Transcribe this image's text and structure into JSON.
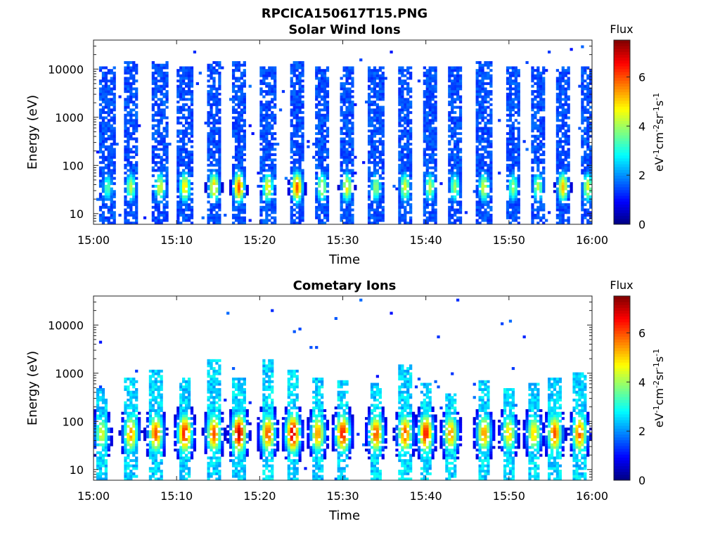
{
  "figure": {
    "title": "RPCICA150617T15.PNG"
  },
  "chart_data": [
    {
      "type": "heatmap",
      "title": "Solar Wind Ions",
      "xlabel": "Time",
      "ylabel": "Energy (eV)",
      "x_ticks": [
        "15:00",
        "15:10",
        "15:20",
        "15:30",
        "15:40",
        "15:50",
        "16:00"
      ],
      "x_range": [
        "15:00",
        "16:00"
      ],
      "y_scale": "log",
      "y_ticks": [
        "10",
        "100",
        "1000",
        "10000"
      ],
      "y_range": [
        6,
        40000
      ],
      "colorbar": {
        "label": "Flux",
        "unit": "eV-1cm-2sr-1s-1",
        "ticks": [
          "0",
          "2",
          "4",
          "6"
        ],
        "range": [
          0,
          7.5
        ],
        "colormap": "jet"
      },
      "bursts": [
        {
          "t": 1.7,
          "peak": 3.5,
          "hi": 12000
        },
        {
          "t": 4.5,
          "peak": 4.2,
          "hi": 14000
        },
        {
          "t": 8.0,
          "peak": 4.5,
          "hi": 15000
        },
        {
          "t": 11.0,
          "peak": 5.0,
          "hi": 12000
        },
        {
          "t": 14.5,
          "peak": 5.2,
          "hi": 15000
        },
        {
          "t": 17.5,
          "peak": 6.0,
          "hi": 15000
        },
        {
          "t": 21.0,
          "peak": 4.8,
          "hi": 12000
        },
        {
          "t": 24.5,
          "peak": 6.0,
          "hi": 15000
        },
        {
          "t": 27.5,
          "peak": 4.5,
          "hi": 12000
        },
        {
          "t": 30.5,
          "peak": 4.8,
          "hi": 12000
        },
        {
          "t": 34.0,
          "peak": 4.0,
          "hi": 12000
        },
        {
          "t": 37.5,
          "peak": 4.5,
          "hi": 12000
        },
        {
          "t": 40.5,
          "peak": 4.2,
          "hi": 12000
        },
        {
          "t": 43.5,
          "peak": 4.0,
          "hi": 12000
        },
        {
          "t": 47.0,
          "peak": 4.5,
          "hi": 14000
        },
        {
          "t": 50.5,
          "peak": 4.0,
          "hi": 12000
        },
        {
          "t": 53.5,
          "peak": 4.2,
          "hi": 12000
        },
        {
          "t": 56.5,
          "peak": 5.2,
          "hi": 12000
        },
        {
          "t": 59.5,
          "peak": 4.5,
          "hi": 12000
        }
      ]
    },
    {
      "type": "heatmap",
      "title": "Cometary Ions",
      "xlabel": "Time",
      "ylabel": "Energy (eV)",
      "x_ticks": [
        "15:00",
        "15:10",
        "15:20",
        "15:30",
        "15:40",
        "15:50",
        "16:00"
      ],
      "x_range": [
        "15:00",
        "16:00"
      ],
      "y_scale": "log",
      "y_ticks": [
        "10",
        "100",
        "1000",
        "10000"
      ],
      "y_range": [
        6,
        40000
      ],
      "colorbar": {
        "label": "Flux",
        "unit": "eV-1cm-2sr-1s-1",
        "ticks": [
          "0",
          "2",
          "4",
          "6"
        ],
        "range": [
          0,
          7.5
        ],
        "colormap": "jet"
      },
      "bursts": [
        {
          "t": 1.0,
          "peak": 4.5,
          "hi": 500
        },
        {
          "t": 4.5,
          "peak": 5.5,
          "hi": 800
        },
        {
          "t": 7.5,
          "peak": 6.0,
          "hi": 1200
        },
        {
          "t": 11.0,
          "peak": 6.5,
          "hi": 800
        },
        {
          "t": 14.5,
          "peak": 6.0,
          "hi": 2000
        },
        {
          "t": 17.5,
          "peak": 7.0,
          "hi": 800
        },
        {
          "t": 21.0,
          "peak": 6.0,
          "hi": 2000
        },
        {
          "t": 24.0,
          "peak": 7.0,
          "hi": 1200
        },
        {
          "t": 27.0,
          "peak": 5.5,
          "hi": 800
        },
        {
          "t": 30.0,
          "peak": 6.5,
          "hi": 700
        },
        {
          "t": 34.0,
          "peak": 6.0,
          "hi": 600
        },
        {
          "t": 37.5,
          "peak": 6.0,
          "hi": 1500
        },
        {
          "t": 40.0,
          "peak": 6.5,
          "hi": 600
        },
        {
          "t": 43.0,
          "peak": 5.5,
          "hi": 400
        },
        {
          "t": 47.0,
          "peak": 5.5,
          "hi": 700
        },
        {
          "t": 50.0,
          "peak": 5.0,
          "hi": 500
        },
        {
          "t": 53.0,
          "peak": 5.0,
          "hi": 600
        },
        {
          "t": 55.5,
          "peak": 6.0,
          "hi": 800
        },
        {
          "t": 58.5,
          "peak": 6.0,
          "hi": 1000
        }
      ]
    }
  ]
}
